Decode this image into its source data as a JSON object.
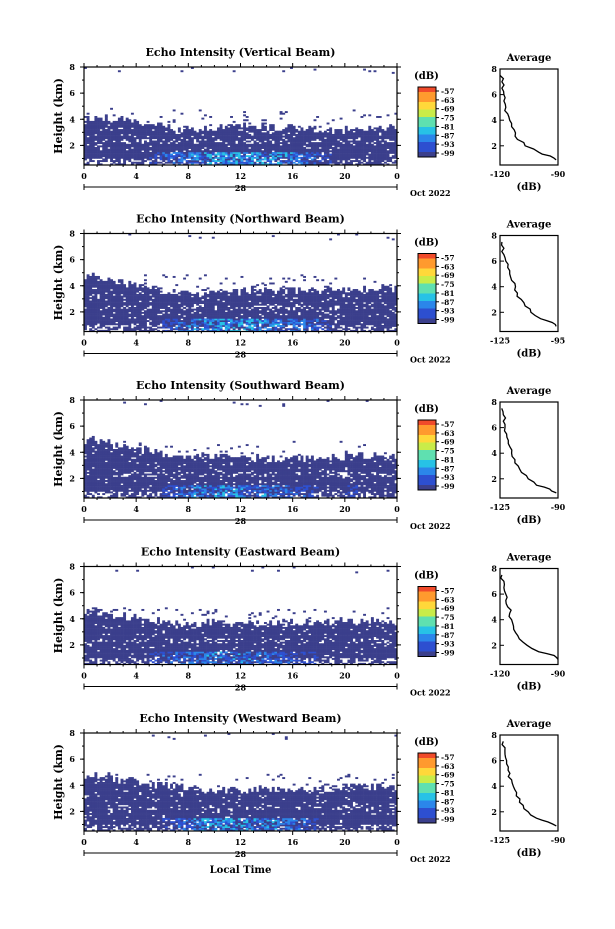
{
  "chart_data": {
    "type": "heatmap",
    "date_label": "Oct 2022",
    "x_label": "Local Time",
    "day_label": "28",
    "colorbar_unit": "(dB)",
    "colorbar_ticks": [
      "-57",
      "-63",
      "-69",
      "-75",
      "-81",
      "-87",
      "-93",
      "-99"
    ],
    "heights_km": [
      0.9,
      1.5,
      2.0,
      2.5,
      3.0,
      3.6,
      4.2,
      5.0,
      6.0,
      7.0,
      8.0
    ],
    "panels": [
      {
        "title": "Echo Intensity (Vertical Beam)",
        "ylabel": "Height (km)",
        "xlim": [
          0,
          24
        ],
        "ylim": [
          0.5,
          8
        ],
        "xticks": [
          "0",
          "4",
          "8",
          "12",
          "16",
          "20",
          "0"
        ],
        "yticks": [
          "2",
          "4",
          "6",
          "8"
        ],
        "top_boundary_km": [
          3.8,
          3.7,
          3.6,
          3.5,
          3.3,
          3.2,
          3.0,
          2.9,
          2.9,
          3.0,
          3.0,
          3.1,
          3.1,
          3.1,
          3.0,
          3.0,
          2.9,
          2.8,
          2.8,
          2.8,
          2.9,
          3.0,
          3.1,
          3.0
        ],
        "bright_layer": [
          0.2,
          0.3,
          0.2,
          0.3,
          0.4,
          0.6,
          0.8,
          1.0,
          1.2,
          1.4,
          1.5,
          1.5,
          1.5,
          1.4,
          1.3,
          1.2,
          1.0,
          0.8,
          0.6,
          0.5,
          0.5,
          0.4,
          0.3,
          0.2
        ],
        "profile": {
          "title": "Average",
          "xlabel": "(dB)",
          "xlim": [
            -120,
            -90
          ],
          "ylim": [
            0.5,
            8
          ],
          "xticks": [
            "-120",
            "-90"
          ],
          "yticks": [
            "2",
            "4",
            "6",
            "8"
          ],
          "height_km": [
            0.9,
            1.2,
            1.5,
            2.0,
            2.5,
            3.0,
            3.5,
            4.0,
            4.5,
            5.0,
            5.5,
            6.0,
            6.5,
            7.0,
            7.5
          ],
          "value_db": [
            -91,
            -94,
            -100,
            -107,
            -111,
            -112,
            -114,
            -115,
            -116,
            -117,
            -118,
            -118,
            -119,
            -119,
            -120
          ]
        }
      },
      {
        "title": "Echo Intensity (Northward Beam)",
        "ylabel": "Height (km)",
        "xlim": [
          0,
          24
        ],
        "ylim": [
          0.5,
          8
        ],
        "xticks": [
          "0",
          "4",
          "8",
          "12",
          "16",
          "20",
          "0"
        ],
        "yticks": [
          "2",
          "4",
          "6",
          "8"
        ],
        "top_boundary_km": [
          4.4,
          4.2,
          4.0,
          3.8,
          3.6,
          3.4,
          3.2,
          3.1,
          3.0,
          3.1,
          3.2,
          3.2,
          3.3,
          3.3,
          3.3,
          3.3,
          3.3,
          3.3,
          3.3,
          3.3,
          3.4,
          3.4,
          3.4,
          3.4
        ],
        "bright_layer": [
          0.2,
          0.3,
          0.3,
          0.3,
          0.4,
          0.5,
          0.7,
          0.9,
          1.1,
          1.3,
          1.4,
          1.4,
          1.3,
          1.2,
          1.1,
          1.0,
          0.9,
          0.8,
          0.6,
          0.5,
          0.4,
          0.3,
          0.3,
          0.2
        ],
        "profile": {
          "title": "Average",
          "xlabel": "(dB)",
          "xlim": [
            -125,
            -95
          ],
          "ylim": [
            0.5,
            8
          ],
          "xticks": [
            "-125",
            "-95"
          ],
          "yticks": [
            "2",
            "4",
            "6",
            "8"
          ],
          "height_km": [
            0.9,
            1.2,
            1.5,
            2.0,
            2.5,
            3.0,
            3.5,
            4.0,
            4.5,
            5.0,
            5.5,
            6.0,
            6.5,
            7.0,
            7.5
          ],
          "value_db": [
            -96,
            -98,
            -104,
            -109,
            -112,
            -114,
            -116,
            -117,
            -119,
            -120,
            -121,
            -122,
            -123,
            -123,
            -124
          ]
        }
      },
      {
        "title": "Echo Intensity (Southward Beam)",
        "ylabel": "Height (km)",
        "xlim": [
          0,
          24
        ],
        "ylim": [
          0.5,
          8
        ],
        "xticks": [
          "0",
          "4",
          "8",
          "12",
          "16",
          "20",
          "0"
        ],
        "yticks": [
          "2",
          "4",
          "6",
          "8"
        ],
        "top_boundary_km": [
          4.6,
          4.4,
          4.2,
          4.0,
          3.8,
          3.6,
          3.4,
          3.3,
          3.3,
          3.3,
          3.3,
          3.2,
          3.2,
          3.2,
          3.1,
          3.1,
          3.1,
          3.1,
          3.2,
          3.3,
          3.5,
          3.4,
          3.4,
          3.3
        ],
        "bright_layer": [
          0.2,
          0.2,
          0.3,
          0.3,
          0.4,
          0.5,
          0.7,
          0.9,
          1.1,
          1.2,
          1.3,
          1.3,
          1.2,
          1.1,
          1.0,
          0.9,
          0.8,
          0.7,
          0.5,
          0.5,
          0.6,
          0.4,
          0.3,
          0.2
        ],
        "profile": {
          "title": "Average",
          "xlabel": "(dB)",
          "xlim": [
            -125,
            -90
          ],
          "ylim": [
            0.5,
            8
          ],
          "xticks": [
            "-125",
            "-90"
          ],
          "yticks": [
            "2",
            "4",
            "6",
            "8"
          ],
          "height_km": [
            0.9,
            1.2,
            1.5,
            2.0,
            2.5,
            3.0,
            3.5,
            4.0,
            4.5,
            5.0,
            5.5,
            6.0,
            6.5,
            7.0,
            7.5
          ],
          "value_db": [
            -91,
            -95,
            -103,
            -108,
            -112,
            -114,
            -116,
            -118,
            -119,
            -120,
            -121,
            -122,
            -123,
            -123,
            -124
          ]
        }
      },
      {
        "title": "Echo Intensity (Eastward Beam)",
        "ylabel": "Height (km)",
        "xlim": [
          0,
          24
        ],
        "ylim": [
          0.5,
          8
        ],
        "xticks": [
          "0",
          "4",
          "8",
          "12",
          "16",
          "20",
          "0"
        ],
        "yticks": [
          "2",
          "4",
          "6",
          "8"
        ],
        "top_boundary_km": [
          4.3,
          4.1,
          3.9,
          3.8,
          3.6,
          3.5,
          3.4,
          3.3,
          3.3,
          3.3,
          3.3,
          3.3,
          3.3,
          3.3,
          3.3,
          3.3,
          3.3,
          3.4,
          3.4,
          3.5,
          3.5,
          3.5,
          3.5,
          3.5
        ],
        "bright_layer": [
          0.3,
          0.4,
          0.4,
          0.4,
          0.5,
          0.6,
          0.8,
          0.9,
          1.0,
          1.1,
          1.1,
          1.1,
          1.1,
          1.0,
          0.9,
          0.8,
          0.7,
          0.6,
          0.5,
          0.4,
          0.3,
          0.2,
          0.0,
          0.0
        ],
        "profile": {
          "title": "Average",
          "xlabel": "(dB)",
          "xlim": [
            -120,
            -90
          ],
          "ylim": [
            0.5,
            8
          ],
          "xticks": [
            "-120",
            "-90"
          ],
          "yticks": [
            "2",
            "4",
            "6",
            "8"
          ],
          "height_km": [
            0.9,
            1.2,
            1.5,
            2.0,
            2.5,
            3.0,
            3.5,
            4.0,
            4.5,
            5.0,
            5.5,
            6.0,
            6.5,
            7.0,
            7.5
          ],
          "value_db": [
            -90,
            -92,
            -100,
            -106,
            -110,
            -112,
            -113,
            -114,
            -115,
            -116,
            -117,
            -117,
            -118,
            -118,
            -119
          ]
        }
      },
      {
        "title": "Echo Intensity (Westward Beam)",
        "ylabel": "Height (km)",
        "xlim": [
          0,
          24
        ],
        "ylim": [
          0.5,
          8
        ],
        "xticks": [
          "0",
          "4",
          "8",
          "12",
          "16",
          "20",
          "0"
        ],
        "yticks": [
          "2",
          "4",
          "6",
          "8"
        ],
        "top_boundary_km": [
          4.4,
          4.3,
          4.1,
          4.0,
          3.9,
          3.7,
          3.6,
          3.5,
          3.4,
          3.3,
          3.3,
          3.3,
          3.3,
          3.3,
          3.3,
          3.3,
          3.3,
          3.3,
          3.4,
          3.4,
          3.5,
          3.5,
          3.5,
          3.5
        ],
        "bright_layer": [
          0.2,
          0.3,
          0.3,
          0.3,
          0.4,
          0.5,
          0.7,
          0.9,
          1.1,
          1.3,
          1.4,
          1.4,
          1.4,
          1.3,
          1.2,
          1.0,
          0.9,
          0.7,
          0.5,
          0.4,
          0.3,
          0.2,
          0.1,
          0.0
        ],
        "profile": {
          "title": "Average",
          "xlabel": "(dB)",
          "xlim": [
            -125,
            -90
          ],
          "ylim": [
            0.5,
            8
          ],
          "xticks": [
            "-125",
            "-90"
          ],
          "yticks": [
            "2",
            "4",
            "6",
            "8"
          ],
          "height_km": [
            0.9,
            1.2,
            1.5,
            2.0,
            2.5,
            3.0,
            3.5,
            4.0,
            4.5,
            5.0,
            5.5,
            6.0,
            6.5,
            7.0,
            7.5
          ],
          "value_db": [
            -91,
            -96,
            -103,
            -108,
            -111,
            -113,
            -115,
            -117,
            -118,
            -119,
            -120,
            -121,
            -122,
            -122,
            -123
          ]
        }
      }
    ]
  },
  "colors": {
    "colormap": [
      "#3b3f8c",
      "#2d4fd0",
      "#2b86ea",
      "#27c2e6",
      "#5fe0b0",
      "#c9ec49",
      "#ffd83a",
      "#ff9a2e",
      "#f04a2a"
    ],
    "profile_line": "#000000",
    "frame": "#000000"
  }
}
